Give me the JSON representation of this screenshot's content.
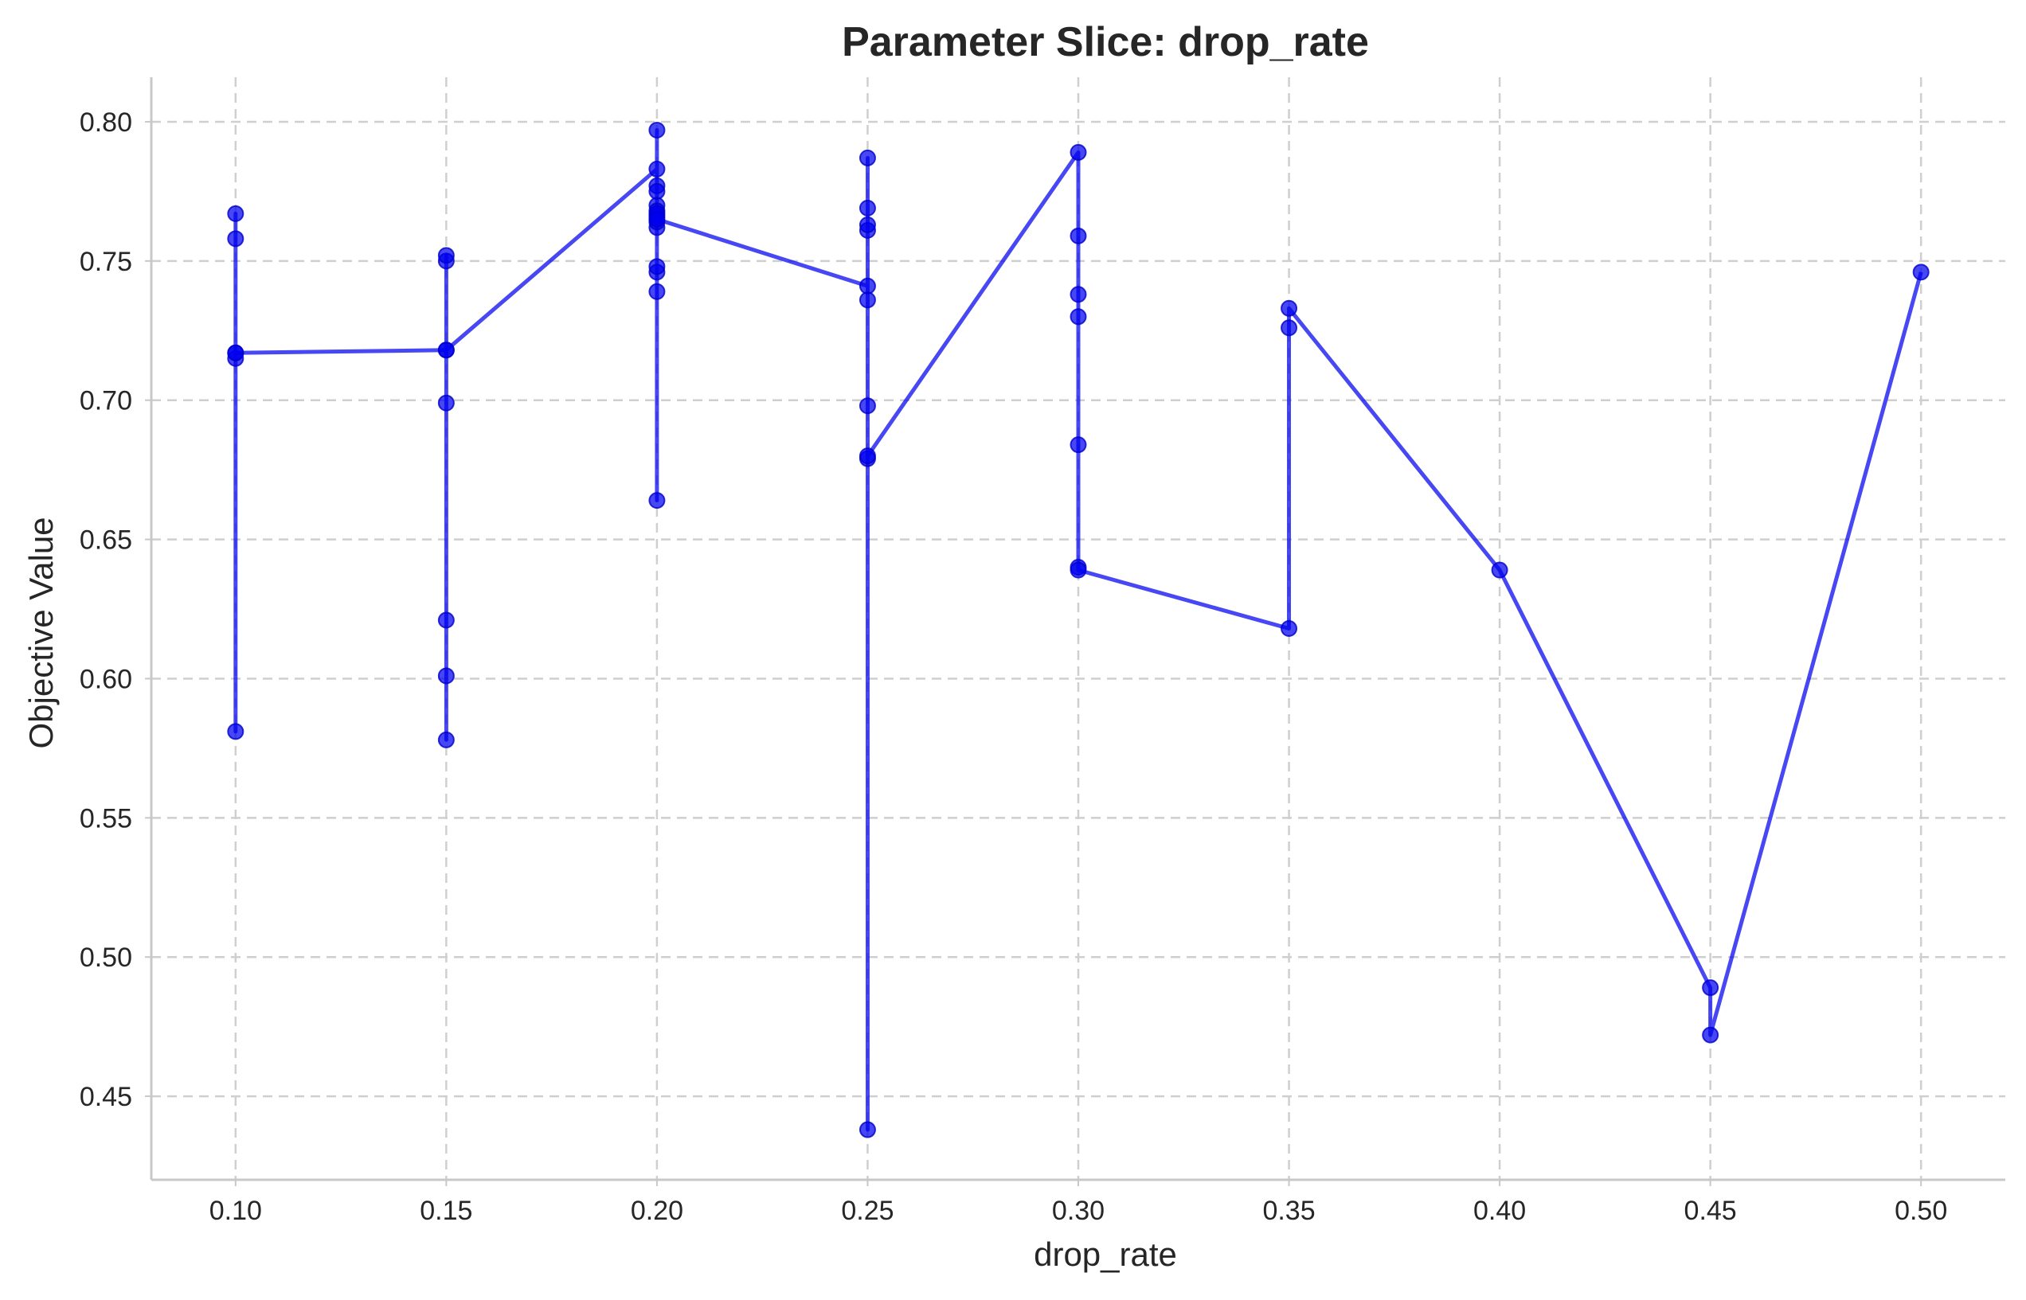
{
  "chart_data": {
    "type": "line",
    "title": "Parameter Slice: drop_rate",
    "xlabel": "drop_rate",
    "ylabel": "Objective Value",
    "xlim": [
      0.08,
      0.52
    ],
    "ylim": [
      0.42,
      0.816
    ],
    "x_ticks": [
      0.1,
      0.15,
      0.2,
      0.25,
      0.3,
      0.35,
      0.4,
      0.45,
      0.5
    ],
    "x_tick_labels": [
      "0.10",
      "0.15",
      "0.20",
      "0.25",
      "0.30",
      "0.35",
      "0.40",
      "0.45",
      "0.50"
    ],
    "y_ticks": [
      0.45,
      0.5,
      0.55,
      0.6,
      0.65,
      0.7,
      0.75,
      0.8
    ],
    "y_tick_labels": [
      "0.45",
      "0.50",
      "0.55",
      "0.60",
      "0.65",
      "0.70",
      "0.75",
      "0.80"
    ],
    "grid": true,
    "line_color": "#0000ee",
    "series": [
      {
        "x": [
          0.1,
          0.1,
          0.1,
          0.1,
          0.1,
          0.1,
          0.15,
          0.15,
          0.15,
          0.15,
          0.15,
          0.15,
          0.15,
          0.15,
          0.2,
          0.2,
          0.2,
          0.2,
          0.2,
          0.2,
          0.2,
          0.2,
          0.2,
          0.2,
          0.2,
          0.2,
          0.2,
          0.2,
          0.2,
          0.25,
          0.25,
          0.25,
          0.25,
          0.25,
          0.25,
          0.25,
          0.25,
          0.25,
          0.25,
          0.3,
          0.3,
          0.3,
          0.3,
          0.3,
          0.3,
          0.3,
          0.35,
          0.35,
          0.35,
          0.4,
          0.45,
          0.45,
          0.5
        ],
        "y": [
          0.715,
          0.758,
          0.767,
          0.581,
          0.717,
          0.717,
          0.718,
          0.578,
          0.601,
          0.621,
          0.699,
          0.75,
          0.752,
          0.718,
          0.783,
          0.797,
          0.664,
          0.739,
          0.746,
          0.748,
          0.762,
          0.766,
          0.77,
          0.777,
          0.775,
          0.768,
          0.764,
          0.767,
          0.765,
          0.741,
          0.736,
          0.761,
          0.763,
          0.769,
          0.787,
          0.698,
          0.438,
          0.679,
          0.68,
          0.789,
          0.759,
          0.73,
          0.738,
          0.684,
          0.64,
          0.639,
          0.618,
          0.726,
          0.733,
          0.639,
          0.489,
          0.472,
          0.746
        ]
      }
    ]
  }
}
